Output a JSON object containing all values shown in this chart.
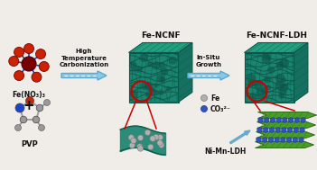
{
  "bg_color": "#f0ede8",
  "labels": {
    "fe_no3": "Fe(NO₃)₃",
    "pvp": "PVP",
    "plus": "+",
    "arrow1_text": "High\nTemperature\nCarbonization",
    "cube1_label": "Fe-NCNF",
    "arrow2_text": "In-Situ\nGrowth",
    "cube2_label": "Fe-NCNF-LDH",
    "legend_fe": "Fe",
    "legend_co3": "CO₃²⁻",
    "ldh_label": "Ni-Mn-LDH"
  },
  "colors": {
    "teal_main": "#1a8570",
    "teal_mid": "#157060",
    "teal_dark": "#0d5548",
    "teal_light": "#22a080",
    "green_ldh": "#4a9e28",
    "green_ldh_dark": "#2d6b15",
    "green_ldh_light": "#65b535",
    "arrow_color": "#88c8e8",
    "arrow_outline": "#5aaacf",
    "red_circle": "#cc0000",
    "fe_center": "#7a0000",
    "fe_outer": "#cc2200",
    "blue_bond": "#2244aa",
    "pvp_blue": "#1a44cc",
    "pvp_red": "#cc2200",
    "pvp_grey": "#999999",
    "fe_dot": "#b0b0b0",
    "fe_dot_edge": "#777777",
    "co3_dot": "#3355bb",
    "co3_dot_edge": "#1133aa",
    "text_dark": "#111111",
    "red_line": "#cc0000",
    "ldh_arrow": "#66aacc",
    "white": "#ffffff"
  },
  "figsize": [
    3.51,
    1.89
  ],
  "dpi": 100
}
